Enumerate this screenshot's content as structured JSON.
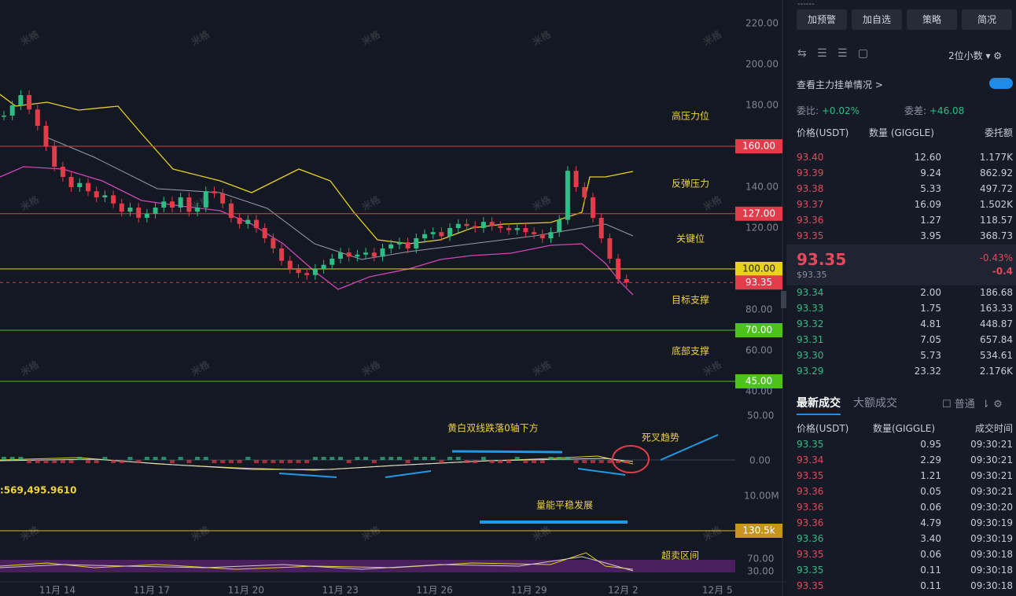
{
  "buttons": [
    "加预警",
    "加自选",
    "策略",
    "简况"
  ],
  "decimal_select": "2位小数",
  "main_force_link": "查看主力挂单情况",
  "ratio": {
    "label": "委比:",
    "value": "+0.02%"
  },
  "diff": {
    "label": "委差:",
    "value": "+46.08"
  },
  "book_headers": [
    "价格(USDT)",
    "数量 (GIGGLE)",
    "委托额"
  ],
  "asks": [
    [
      "93.40",
      "12.60",
      "1.177K"
    ],
    [
      "93.39",
      "9.24",
      "862.92"
    ],
    [
      "93.38",
      "5.33",
      "497.72"
    ],
    [
      "93.37",
      "16.09",
      "1.502K"
    ],
    [
      "93.36",
      "1.27",
      "118.57"
    ],
    [
      "93.35",
      "3.95",
      "368.73"
    ]
  ],
  "last": {
    "price": "93.35",
    "change_pct": "-0.43%",
    "usd": "$93.35",
    "change": "-0.4"
  },
  "bids": [
    [
      "93.34",
      "2.00",
      "186.68"
    ],
    [
      "93.33",
      "1.75",
      "163.33"
    ],
    [
      "93.32",
      "4.81",
      "448.87"
    ],
    [
      "93.31",
      "7.05",
      "657.84"
    ],
    [
      "93.30",
      "5.73",
      "534.61"
    ],
    [
      "93.29",
      "23.32",
      "2.176K"
    ]
  ],
  "trade_tabs": [
    "最新成交",
    "大额成交"
  ],
  "normal_label": "普通",
  "trade_headers": [
    "价格(USDT)",
    "数量(GIGGLE)",
    "成交时间"
  ],
  "trades": [
    [
      "93.35",
      "0.95",
      "09:30:21"
    ],
    [
      "93.34",
      "2.29",
      "09:30:21"
    ],
    [
      "93.35",
      "1.21",
      "09:30:21"
    ],
    [
      "93.36",
      "0.05",
      "09:30:21"
    ],
    [
      "93.36",
      "0.06",
      "09:30:20"
    ],
    [
      "93.36",
      "4.79",
      "09:30:19"
    ],
    [
      "93.36",
      "3.40",
      "09:30:19"
    ],
    [
      "93.35",
      "0.06",
      "09:30:18"
    ],
    [
      "93.35",
      "0.11",
      "09:30:18"
    ],
    [
      "93.35",
      "0.11",
      "09:30:18"
    ]
  ],
  "trade_sides": [
    "buy",
    "sell",
    "sell",
    "sell",
    "sell",
    "sell",
    "buy",
    "sell",
    "buy",
    "sell"
  ],
  "chart": {
    "watermark": "米格",
    "price_ticks": [
      {
        "value": 220,
        "label": "220.00"
      },
      {
        "value": 200,
        "label": "200.00"
      },
      {
        "value": 180,
        "label": "180.00"
      },
      {
        "value": 140,
        "label": "140.00"
      },
      {
        "value": 120,
        "label": "120.00"
      },
      {
        "value": 80,
        "label": "80.00"
      },
      {
        "value": 60,
        "label": "60.00"
      },
      {
        "value": 40,
        "label": "40.00"
      }
    ],
    "levels": [
      {
        "value": 160,
        "label": "160.00",
        "note": "高压力位",
        "color": "#e03c4a"
      },
      {
        "value": 127,
        "label": "127.00",
        "note": "反弹压力",
        "color": "#e03c4a"
      },
      {
        "value": 100,
        "label": "100.00",
        "note": "关键位",
        "color": "#e8d21c"
      },
      {
        "value": 70,
        "label": "70.00",
        "note": "目标支撑",
        "color": "#4cc21a"
      },
      {
        "value": 45,
        "label": "45.00",
        "note": "底部支撑",
        "color": "#4cc21a"
      }
    ],
    "last_tag": {
      "value": 93.35,
      "label": "93.35"
    },
    "macd_ticks": [
      "50.00",
      "0.00"
    ],
    "macd_note": "黄白双线跌落0轴下方",
    "cross_note": "死叉趋势",
    "vol_label": ":569,495.9610",
    "vol_tick": "10.00M",
    "vol_tag": "130.5k",
    "vol_note": "量能平稳发展",
    "rsi_ticks": [
      "70.00",
      "30.00"
    ],
    "rsi_note": "超卖区间",
    "dates": [
      "11月 14",
      "11月 17",
      "11月 20",
      "11月 23",
      "11月 26",
      "11月 29",
      "12月 2",
      "12月 5"
    ],
    "closes": [
      175,
      180,
      185,
      178,
      170,
      160,
      150,
      145,
      140,
      142,
      138,
      135,
      136,
      132,
      128,
      130,
      125,
      127,
      130,
      133,
      130,
      135,
      128,
      130,
      138,
      137,
      132,
      125,
      122,
      124,
      120,
      115,
      110,
      104,
      100,
      98,
      97,
      100,
      102,
      105,
      108,
      106,
      107,
      108,
      106,
      110,
      112,
      113,
      110,
      115,
      117,
      118,
      116,
      120,
      122,
      121,
      120,
      123,
      121,
      120,
      119,
      120,
      118,
      117,
      115,
      118,
      124,
      148,
      140,
      135,
      125,
      115,
      105,
      95,
      93.35
    ]
  }
}
